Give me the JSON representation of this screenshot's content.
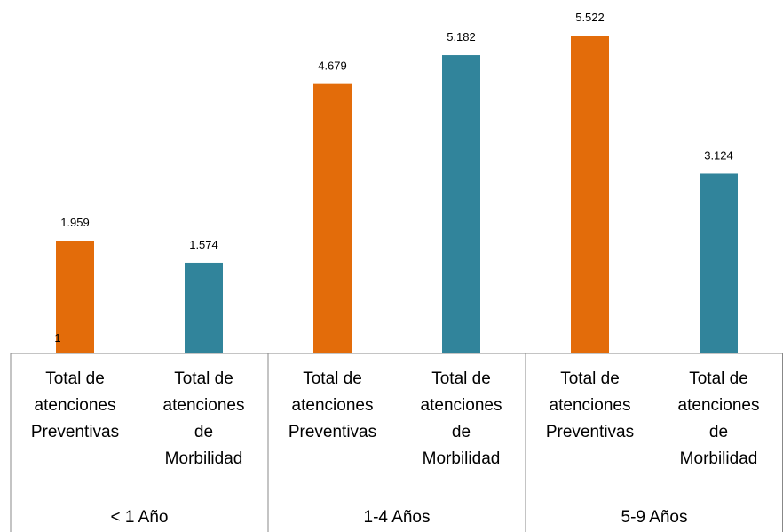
{
  "chart_data": {
    "type": "bar",
    "groups": [
      "< 1 Año",
      "1-4 Años",
      "5-9 Años"
    ],
    "annotation": "1",
    "series": [
      {
        "name": "Total de atenciones Preventivas",
        "color": "#e36c0a",
        "values": [
          1959,
          4679,
          5522
        ],
        "value_labels": [
          "1.959",
          "4.679",
          "5.522"
        ]
      },
      {
        "name": "Total de atenciones de Morbilidad",
        "color": "#31849b",
        "values": [
          1574,
          5182,
          3124
        ],
        "value_labels": [
          "1.574",
          "5.182",
          "3.124"
        ]
      }
    ]
  }
}
